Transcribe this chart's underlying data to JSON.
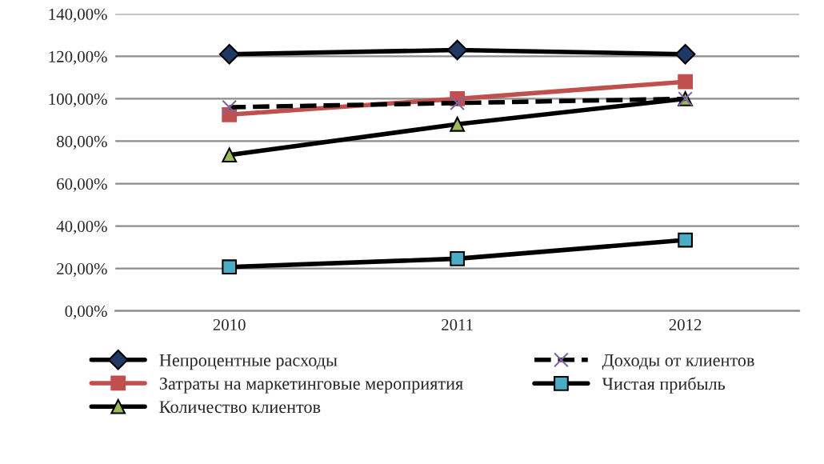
{
  "chart_data": {
    "type": "line",
    "categories": [
      "2010",
      "2011",
      "2012"
    ],
    "series": [
      {
        "name": "Непроцентные расходы",
        "color": "#000000",
        "marker": "diamond",
        "line_style": "solid",
        "values": [
          121,
          123,
          121
        ]
      },
      {
        "name": "Затраты на маркетинговые мероприятия",
        "color": "#c0504d",
        "marker": "square",
        "line_style": "solid",
        "values": [
          92.5,
          100,
          108
        ]
      },
      {
        "name": "Количество клиентов",
        "color": "#000000",
        "marker": "triangle",
        "line_style": "solid",
        "values": [
          73.5,
          88,
          100
        ]
      },
      {
        "name": "Доходы от клиентов",
        "color": "#000000",
        "marker": "cross",
        "line_style": "dashed",
        "values": [
          96,
          98,
          100
        ]
      },
      {
        "name": "Чистая прибыль",
        "color": "#000000",
        "marker": "square",
        "line_style": "solid",
        "values": [
          20.7,
          24.6,
          33.4
        ]
      }
    ],
    "ylim": [
      0,
      140
    ],
    "yticks": [
      {
        "value": 0,
        "label": "0,00%"
      },
      {
        "value": 20,
        "label": "20,00%"
      },
      {
        "value": 40,
        "label": "40,00%"
      },
      {
        "value": 60,
        "label": "60,00%"
      },
      {
        "value": 80,
        "label": "80,00%"
      },
      {
        "value": 100,
        "label": "100,00%"
      },
      {
        "value": 120,
        "label": "120,00%"
      },
      {
        "value": 140,
        "label": "140,00%"
      }
    ],
    "grid": "y",
    "legend": "bottom"
  }
}
